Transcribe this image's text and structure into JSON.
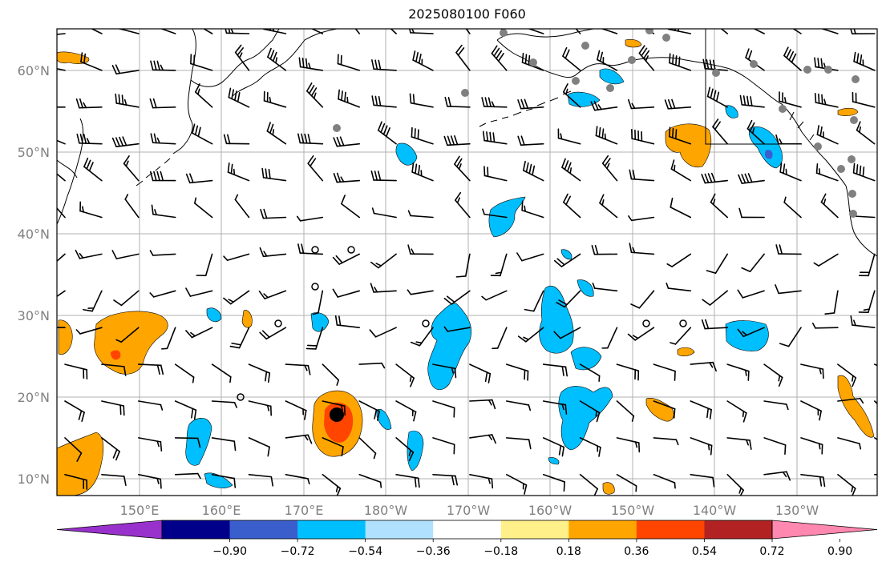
{
  "title": "2025080100 F060",
  "latitude_labels": [
    "10°N",
    "20°N",
    "30°N",
    "40°N",
    "50°N",
    "60°N"
  ],
  "longitude_labels": [
    "150°E",
    "160°E",
    "170°E",
    "180°W",
    "170°W",
    "160°W",
    "150°W",
    "140°W",
    "130°W"
  ],
  "axis_label_color": "#808080",
  "colorbar": {
    "tick_labels": [
      "−0.90",
      "−0.72",
      "−0.54",
      "−0.36",
      "−0.18",
      "0.18",
      "0.36",
      "0.54",
      "0.72",
      "0.90"
    ],
    "colors": [
      "#9932cc",
      "#00008b",
      "#3a5fcd",
      "#00bfff",
      "#b0e2ff",
      "#ffffff",
      "#fff08a",
      "#ffa500",
      "#ff4500",
      "#b22222",
      "#ff88b0"
    ]
  },
  "colors": {
    "coast": "#000000",
    "grid": "#b0b0b0",
    "barb": "#000000",
    "marker_gray": "#808080"
  }
}
